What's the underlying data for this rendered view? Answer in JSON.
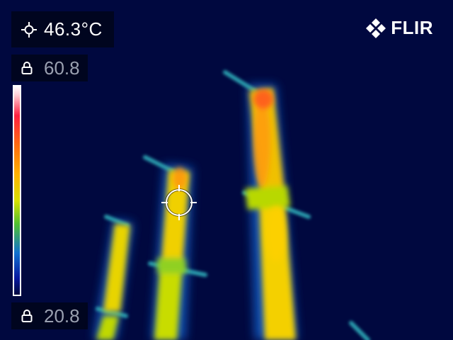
{
  "spot_reading": {
    "value": "46.3°C",
    "icon": "spot-meter-reticle-icon"
  },
  "scale": {
    "max_value": "60.8",
    "min_value": "20.8",
    "lock_icon": "lock-icon",
    "palette": "iron"
  },
  "brand": {
    "text": "FLIR",
    "icon": "flir-logo-icon"
  },
  "colors": {
    "background": "#00083f",
    "hot": "#ff2040",
    "warm": "#ffb000",
    "mid": "#d8e000",
    "cool": "#1070d0"
  }
}
